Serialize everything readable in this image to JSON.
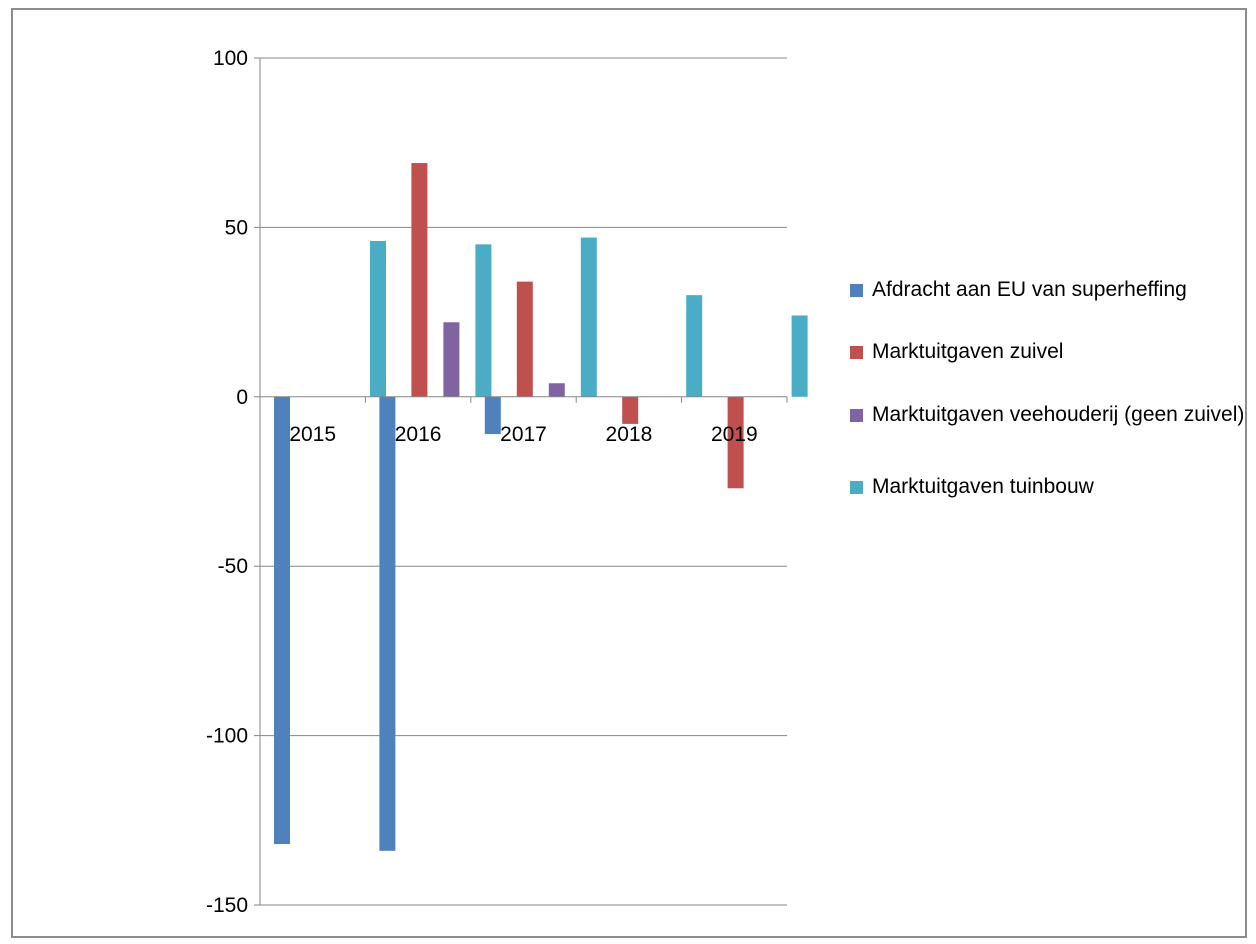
{
  "chart_data": {
    "type": "bar",
    "title": "",
    "xlabel": "",
    "ylabel": "",
    "categories": [
      "2015",
      "2016",
      "2017",
      "2018",
      "2019"
    ],
    "ylim": [
      -150,
      100
    ],
    "yticks": [
      100,
      50,
      0,
      -50,
      -100,
      -150
    ],
    "grid": true,
    "legend_position": "right",
    "series": [
      {
        "name": "Afdracht aan EU van superheffing",
        "color": "#4f81bd",
        "values": [
          -132,
          -134,
          -11,
          0,
          0
        ]
      },
      {
        "name": "Marktuitgaven zuivel",
        "color": "#c0504d",
        "values": [
          0,
          69,
          34,
          -8,
          -27
        ]
      },
      {
        "name": "Marktuitgaven veehouderij (geen zuivel)",
        "color": "#8064a2",
        "values": [
          0,
          22,
          4,
          0,
          0
        ]
      },
      {
        "name": "Marktuitgaven tuinbouw",
        "color": "#4bacc6",
        "values": [
          46,
          45,
          47,
          30,
          24
        ]
      }
    ]
  }
}
